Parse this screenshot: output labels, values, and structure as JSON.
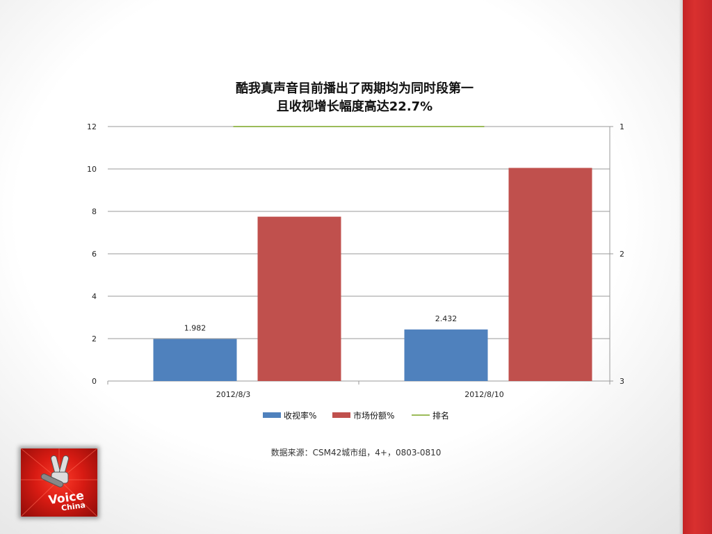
{
  "title_line1": "酷我真声音目前播出了两期均为同时段第一",
  "title_line2": "且收视增长幅度高达22.7%",
  "chart_data": {
    "type": "bar",
    "categories": [
      "2012/8/3",
      "2012/8/10"
    ],
    "series": [
      {
        "name": "收视率%",
        "type": "bar",
        "axis": "left",
        "values": [
          1.982,
          2.432
        ],
        "data_labels": [
          "1.982",
          "2.432"
        ],
        "color": "#4F81BD"
      },
      {
        "name": "市场份额%",
        "type": "bar",
        "axis": "left",
        "values": [
          7.75,
          10.05
        ],
        "color": "#C0504D"
      },
      {
        "name": "排名",
        "type": "line",
        "axis": "right",
        "values": [
          1,
          1
        ],
        "color": "#9BBB59"
      }
    ],
    "y_left": {
      "ylim": [
        0,
        12
      ],
      "ticks": [
        "0",
        "2",
        "4",
        "6",
        "8",
        "10",
        "12"
      ]
    },
    "y_right": {
      "ylim": [
        1,
        3
      ],
      "reversed": true,
      "ticks": [
        "1",
        "2",
        "3"
      ]
    },
    "grid": true,
    "legend": "bottom"
  },
  "source_note": "数据来源：CSM42城市组，4+，0803-0810",
  "logo_text": "Voice of China 中国好声音"
}
